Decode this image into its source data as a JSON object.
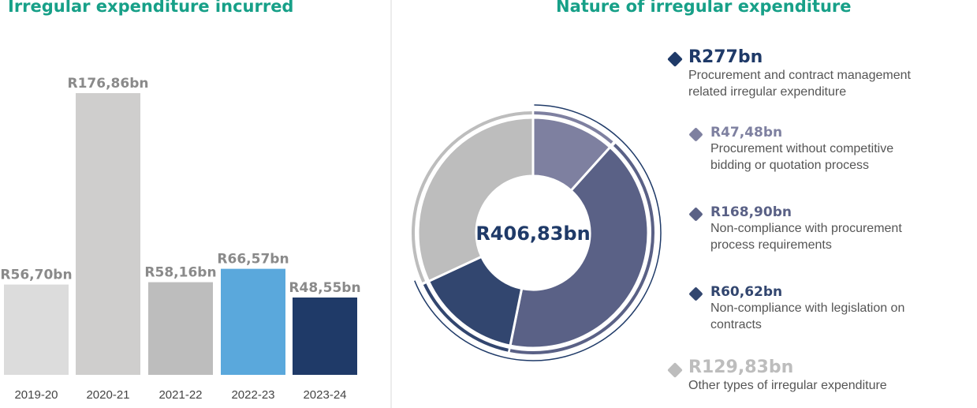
{
  "left_title": "Irregular expenditure incurred",
  "right_title": "Nature of irregular expenditure",
  "chart_data": [
    {
      "type": "bar",
      "title": "Irregular expenditure incurred",
      "categories": [
        "2019-20",
        "2020-21",
        "2021-22",
        "2022-23",
        "2023-24"
      ],
      "values": [
        56.7,
        176.86,
        58.16,
        66.57,
        48.55
      ],
      "labels": [
        "R56,70bn",
        "R176,86bn",
        "R58,16bn",
        "R66,57bn",
        "R48,55bn"
      ],
      "colors": [
        "#dcdcdc",
        "#cfcecd",
        "#bdbdbd",
        "#5aa8dc",
        "#1f3a68"
      ],
      "unit": "R bn"
    },
    {
      "type": "pie",
      "title": "Nature of irregular expenditure",
      "center_label": "R406,83bn",
      "total": 406.83,
      "slices": [
        {
          "name": "Procurement without competitive bidding or quotation process",
          "value": 47.48,
          "label": "R47,48bn",
          "color": "#7e80a0"
        },
        {
          "name": "Non-compliance with procurement process requirements",
          "value": 168.9,
          "label": "R168,90bn",
          "color": "#5a6186"
        },
        {
          "name": "Non-compliance with legislation on contracts",
          "value": 60.62,
          "label": "R60,62bn",
          "color": "#32466f"
        },
        {
          "name": "Other types of irregular expenditure",
          "value": 129.83,
          "label": "R129,83bn",
          "color": "#bdbdbd"
        }
      ],
      "group": {
        "label": "R277bn",
        "desc1": "Procurement and contract management",
        "desc2": "related irregular expenditure",
        "value": 277,
        "color": "#1f3a68"
      },
      "legend": [
        {
          "label": "R47,48bn",
          "desc1": "Procurement without competitive",
          "desc2": "bidding or quotation process",
          "color": "#7e80a0"
        },
        {
          "label": "R168,90bn",
          "desc1": "Non-compliance with procurement",
          "desc2": "process requirements",
          "color": "#5a6186"
        },
        {
          "label": "R60,62bn",
          "desc1": "Non-compliance with legislation on",
          "desc2": "contracts",
          "color": "#32466f"
        },
        {
          "label": "R129,83bn",
          "desc1": "Other types of irregular expenditure",
          "color": "#bdbdbd"
        }
      ]
    }
  ]
}
